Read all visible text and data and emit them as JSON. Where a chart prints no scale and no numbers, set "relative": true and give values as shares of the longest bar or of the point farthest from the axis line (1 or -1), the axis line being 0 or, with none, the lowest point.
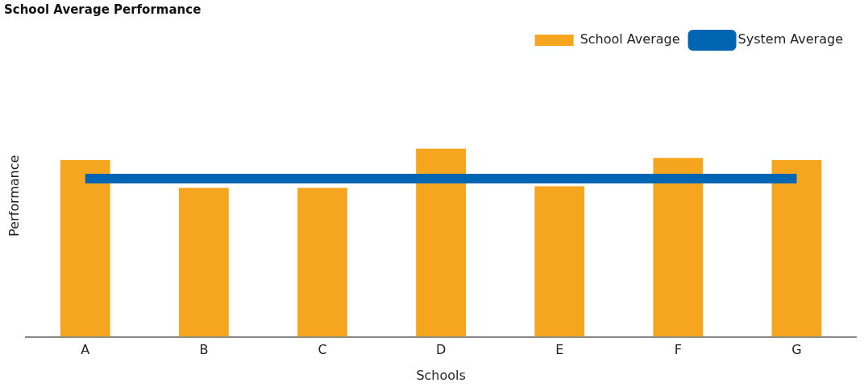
{
  "chart_data": {
    "type": "bar",
    "title": "School Average Performance",
    "xlabel": "Schools",
    "ylabel": "Performance",
    "relative": true,
    "legend": "top right",
    "categories": [
      "A",
      "B",
      "C",
      "D",
      "E",
      "F",
      "G"
    ],
    "series": [
      {
        "name": "School Average",
        "color": "#f6a51e",
        "values": [
          0.939,
          0.792,
          0.792,
          1,
          0.8,
          0.951,
          0.939
        ]
      },
      {
        "name": "System Average",
        "type": "line",
        "color": "#0066b3",
        "marker": "none",
        "values": [
          0.841,
          0.841,
          0.841,
          0.841,
          0.841,
          0.841,
          0.841
        ]
      }
    ]
  }
}
